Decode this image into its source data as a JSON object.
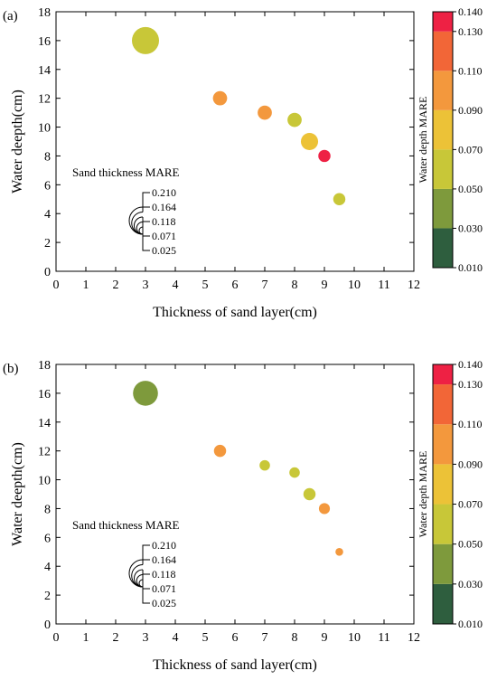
{
  "colorbar": {
    "label": "Water depth MARE",
    "ticks": [
      "0.010",
      "0.030",
      "0.050",
      "0.070",
      "0.090",
      "0.110",
      "0.130",
      "0.140"
    ],
    "bins": [
      {
        "from": 0.01,
        "to": 0.03,
        "color": "#2e5e3e"
      },
      {
        "from": 0.03,
        "to": 0.05,
        "color": "#7e9a3c"
      },
      {
        "from": 0.05,
        "to": 0.07,
        "color": "#c8c738"
      },
      {
        "from": 0.07,
        "to": 0.09,
        "color": "#ecc237"
      },
      {
        "from": 0.09,
        "to": 0.11,
        "color": "#f3983d"
      },
      {
        "from": 0.11,
        "to": 0.13,
        "color": "#f26637"
      },
      {
        "from": 0.13,
        "to": 0.14,
        "color": "#ee2144"
      }
    ]
  },
  "size_legend": {
    "title": "Sand thickness MARE",
    "values": [
      "0.210",
      "0.164",
      "0.118",
      "0.071",
      "0.025"
    ]
  },
  "chart_data": [
    {
      "panel": "(a)",
      "type": "scatter",
      "xlabel": "Thickness of sand layer(cm)",
      "ylabel": "Water deepth(cm)",
      "xlim": [
        0,
        12
      ],
      "ylim": [
        0,
        18
      ],
      "xticks": [
        "0",
        "1",
        "2",
        "3",
        "4",
        "5",
        "6",
        "7",
        "8",
        "9",
        "10",
        "11",
        "12"
      ],
      "yticks": [
        "0",
        "2",
        "4",
        "6",
        "8",
        "10",
        "12",
        "14",
        "16",
        "18"
      ],
      "points": [
        {
          "x": 3,
          "y": 16,
          "water_mare": 0.06,
          "sand_mare": 0.21
        },
        {
          "x": 5.5,
          "y": 12,
          "water_mare": 0.1,
          "sand_mare": 0.09
        },
        {
          "x": 7,
          "y": 11,
          "water_mare": 0.1,
          "sand_mare": 0.09
        },
        {
          "x": 8,
          "y": 10.5,
          "water_mare": 0.06,
          "sand_mare": 0.09
        },
        {
          "x": 8.5,
          "y": 9,
          "water_mare": 0.08,
          "sand_mare": 0.118
        },
        {
          "x": 9,
          "y": 8,
          "water_mare": 0.135,
          "sand_mare": 0.071
        },
        {
          "x": 9.5,
          "y": 5,
          "water_mare": 0.06,
          "sand_mare": 0.071
        }
      ]
    },
    {
      "panel": "(b)",
      "type": "scatter",
      "xlabel": "Thickness of sand layer(cm)",
      "ylabel": "Water deepth(cm)",
      "xlim": [
        0,
        12
      ],
      "ylim": [
        0,
        18
      ],
      "xticks": [
        "0",
        "1",
        "2",
        "3",
        "4",
        "5",
        "6",
        "7",
        "8",
        "9",
        "10",
        "11",
        "12"
      ],
      "yticks": [
        "0",
        "2",
        "4",
        "6",
        "8",
        "10",
        "12",
        "14",
        "16",
        "18"
      ],
      "points": [
        {
          "x": 3,
          "y": 16,
          "water_mare": 0.04,
          "sand_mare": 0.19
        },
        {
          "x": 5.5,
          "y": 12,
          "water_mare": 0.1,
          "sand_mare": 0.071
        },
        {
          "x": 7,
          "y": 11,
          "water_mare": 0.06,
          "sand_mare": 0.055
        },
        {
          "x": 8,
          "y": 10.5,
          "water_mare": 0.06,
          "sand_mare": 0.055
        },
        {
          "x": 8.5,
          "y": 9,
          "water_mare": 0.06,
          "sand_mare": 0.071
        },
        {
          "x": 9,
          "y": 8,
          "water_mare": 0.1,
          "sand_mare": 0.06
        },
        {
          "x": 9.5,
          "y": 5,
          "water_mare": 0.1,
          "sand_mare": 0.03
        }
      ]
    }
  ]
}
